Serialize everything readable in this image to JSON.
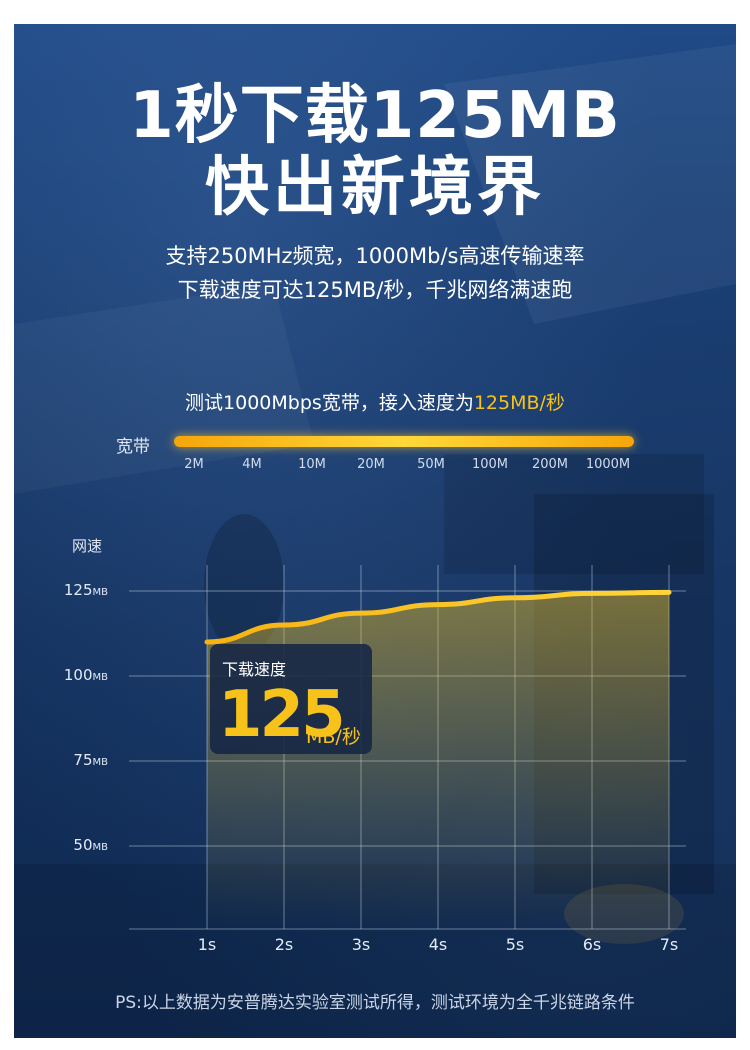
{
  "headline": {
    "line1": "1秒下载125MB",
    "line2": "快出新境界"
  },
  "subtitle": {
    "line1": "支持250MHz频宽，1000Mb/s高速传输速率",
    "line2": "下载速度可达125MB/秒，千兆网络满速跑"
  },
  "test_note": {
    "prefix": "测试1000Mbps宽带，接入速度为",
    "highlight": "125MB/秒"
  },
  "bandwidth": {
    "label": "宽带",
    "ticks": [
      "2M",
      "4M",
      "10M",
      "20M",
      "50M",
      "100M",
      "200M",
      "1000M"
    ],
    "fill_fraction": 1.0
  },
  "chart_data": {
    "type": "area",
    "ylabel": "网速",
    "y_ticks": [
      {
        "value": "125",
        "unit": "MB"
      },
      {
        "value": "100",
        "unit": "MB"
      },
      {
        "value": "75",
        "unit": "MB"
      },
      {
        "value": "50",
        "unit": "MB"
      }
    ],
    "ylim": [
      25,
      130
    ],
    "x": [
      "1s",
      "2s",
      "3s",
      "4s",
      "5s",
      "6s",
      "7s"
    ],
    "values": [
      110,
      115,
      118.5,
      121,
      123,
      124.3,
      124.6
    ],
    "grid": true,
    "callout": {
      "label": "下载速度",
      "value": "125",
      "unit": "MB/秒"
    }
  },
  "footnote": "PS:以上数据为安普腾达实验室测试所得，测试环境为全千兆链路条件",
  "colors": {
    "accent": "#f7c21a",
    "background": "#163766"
  }
}
